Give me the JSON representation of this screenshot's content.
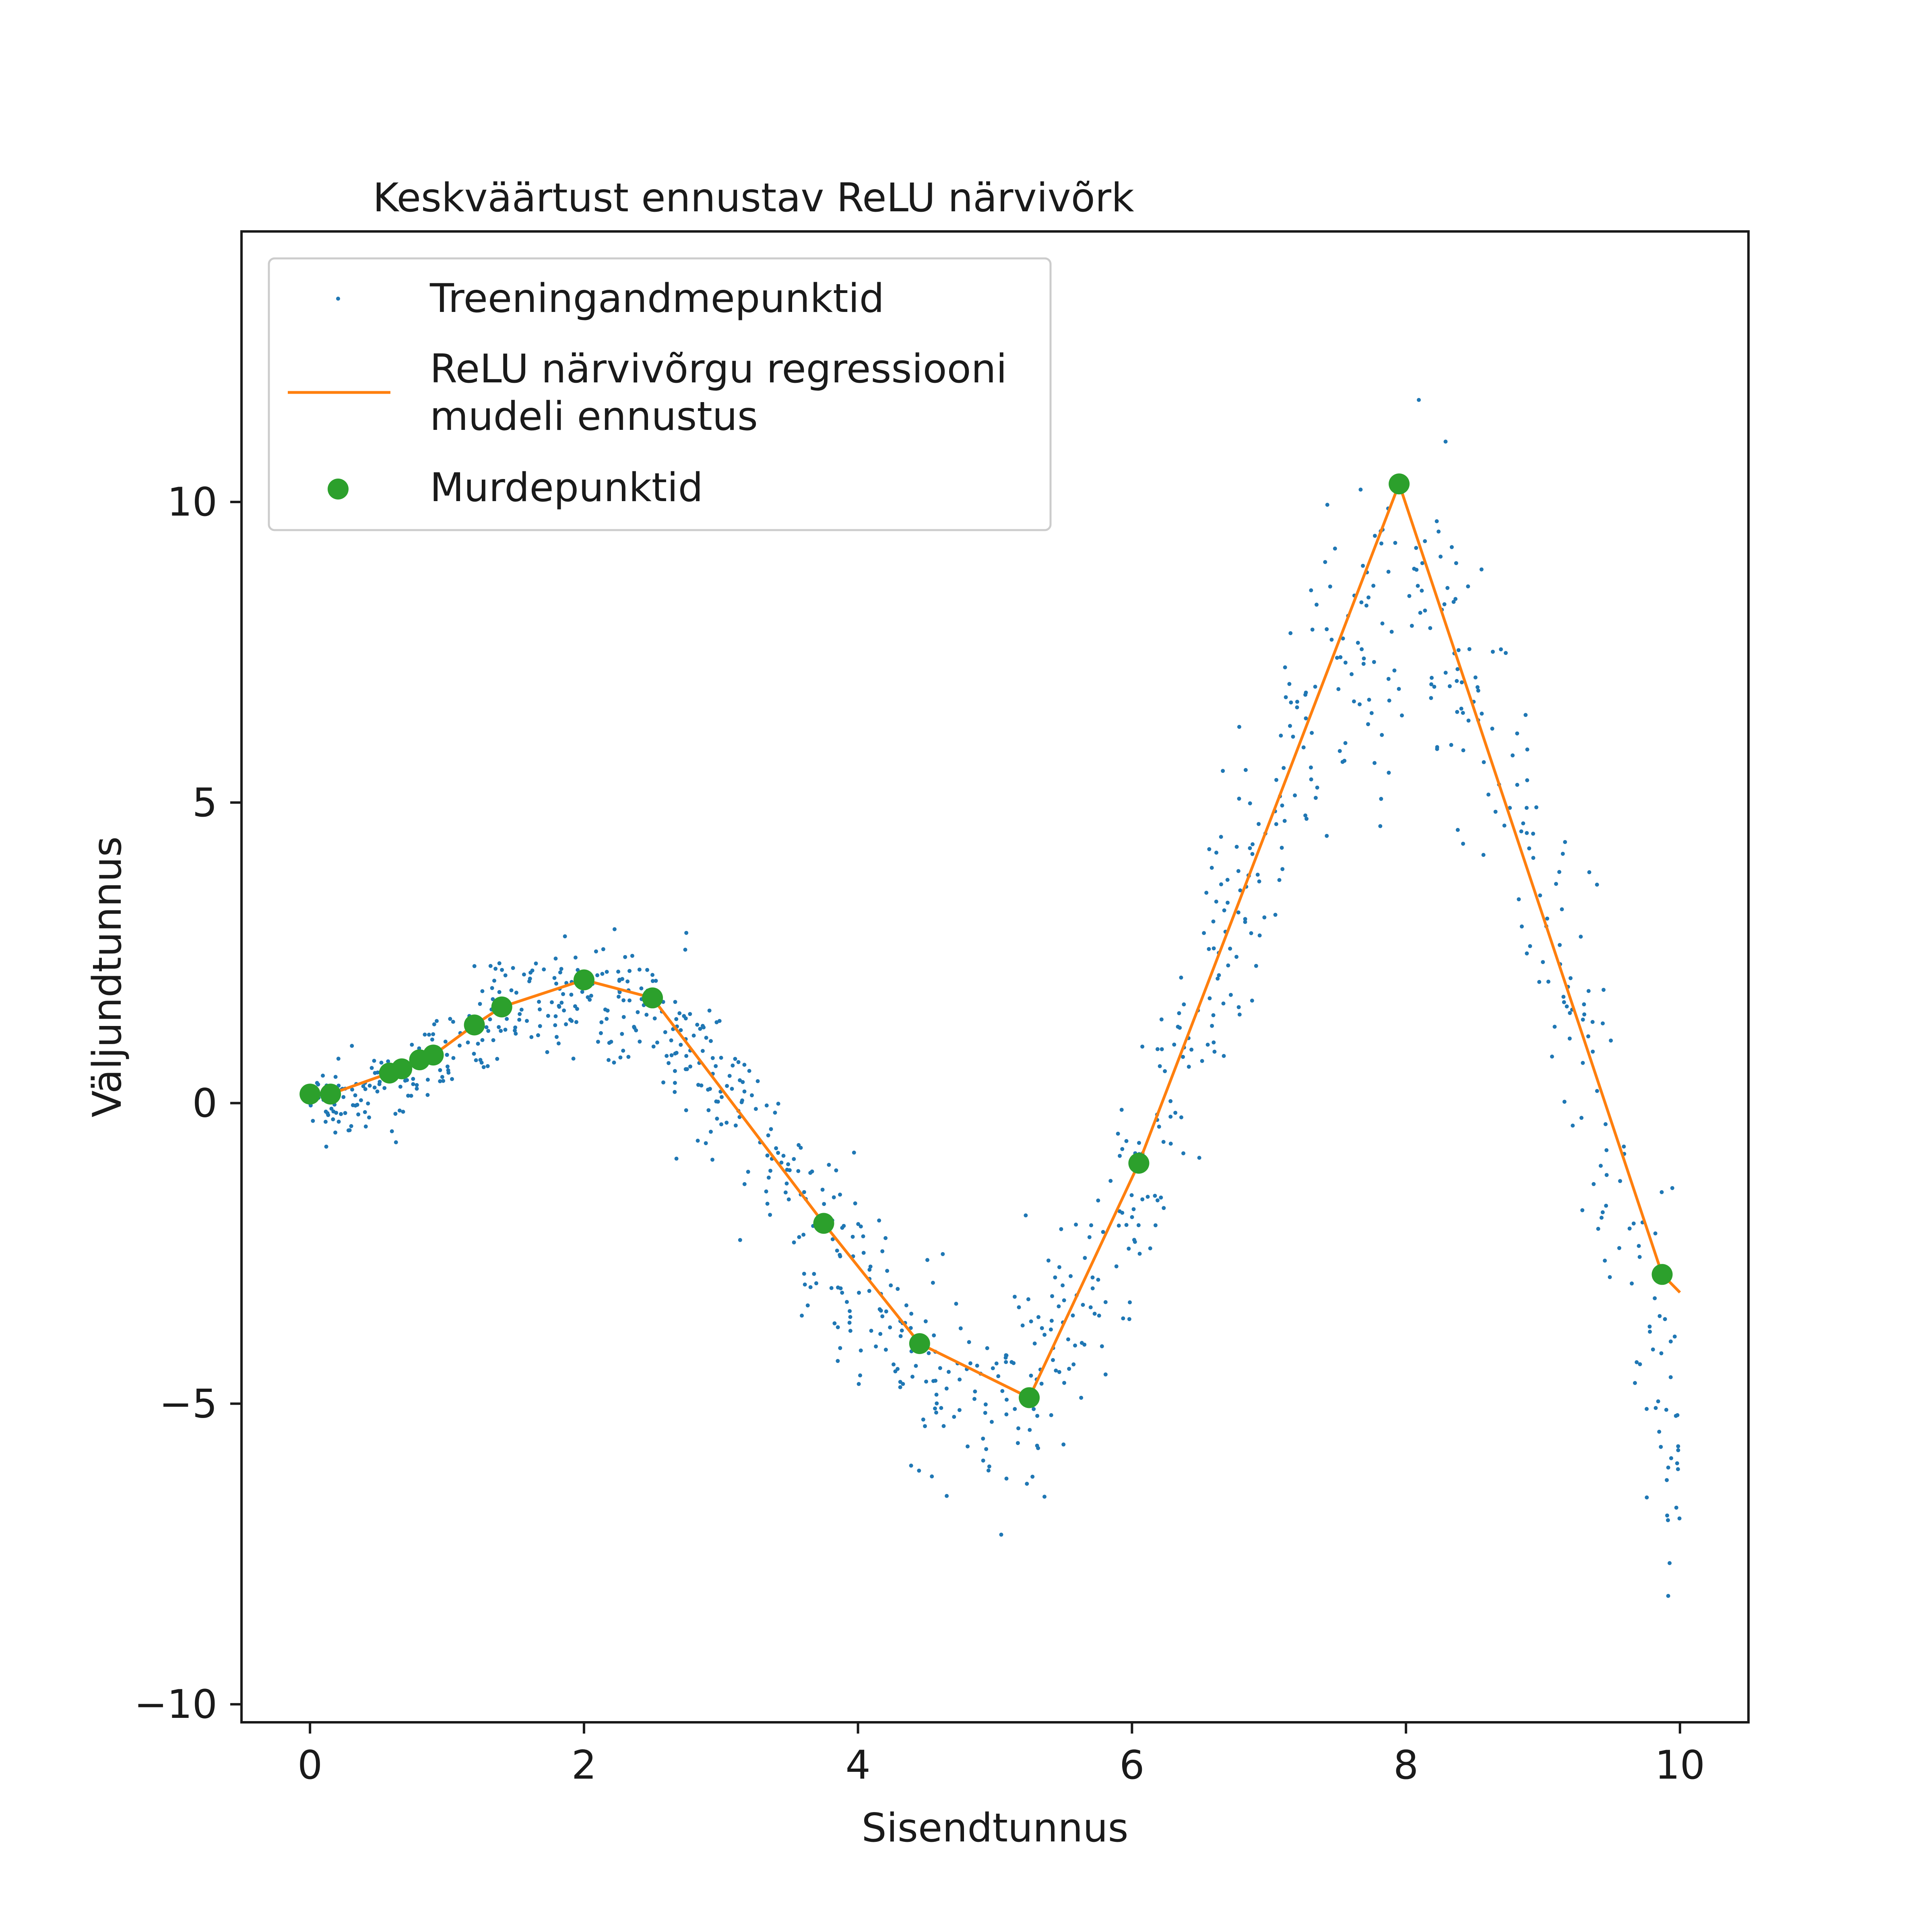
{
  "chart_data": {
    "type": "scatter",
    "title": "Keskväärtust ennustav ReLU närvivõrk",
    "xlabel": "Sisendtunnus",
    "ylabel": "Väljundtunnus",
    "xlim": [
      -0.5,
      10.5
    ],
    "ylim": [
      -10.3,
      14.5
    ],
    "xticks": [
      0,
      2,
      4,
      6,
      8,
      10
    ],
    "xtick_labels": [
      "0",
      "2",
      "4",
      "6",
      "8",
      "10"
    ],
    "yticks": [
      -10,
      -5,
      0,
      5,
      10
    ],
    "ytick_labels": [
      "−10",
      "−5",
      "0",
      "5",
      "10"
    ],
    "grid": false,
    "legend_position": "top-left",
    "series": [
      {
        "name": "Treeningandmepunktid",
        "kind": "scatter",
        "color": "#1f77b4",
        "generator": {
          "count": 1000,
          "x_range": [
            0,
            10
          ],
          "mean": "x*sin(x)",
          "noise_sd": "0.3 + 0.13*x"
        }
      },
      {
        "name": "ReLU närvivõrgu regressiooni mudeli ennustus",
        "name_lines": [
          "ReLU närvivõrgu regressiooni",
          "mudeli ennustus"
        ],
        "kind": "line",
        "color": "#ff7f0e",
        "x": [
          0,
          0.15,
          0.58,
          0.67,
          0.8,
          0.9,
          1.2,
          1.4,
          2.0,
          2.5,
          3.75,
          4.45,
          5.25,
          6.05,
          7.95,
          9.87,
          10.0
        ],
        "y": [
          0.15,
          0.15,
          0.5,
          0.57,
          0.72,
          0.8,
          1.3,
          1.6,
          2.05,
          1.75,
          -2.0,
          -4.0,
          -4.9,
          -1.0,
          10.3,
          -2.85,
          -3.15
        ]
      },
      {
        "name": "Murdepunktid",
        "kind": "scatter",
        "color": "#2ca02c",
        "x": [
          0,
          0.15,
          0.58,
          0.67,
          0.8,
          0.9,
          1.2,
          1.4,
          2.0,
          2.5,
          3.75,
          4.45,
          5.25,
          6.05,
          7.95,
          9.87
        ],
        "y": [
          0.15,
          0.15,
          0.5,
          0.57,
          0.72,
          0.8,
          1.3,
          1.6,
          2.05,
          1.75,
          -2.0,
          -4.0,
          -4.9,
          -1.0,
          10.3,
          -2.85
        ]
      }
    ]
  }
}
